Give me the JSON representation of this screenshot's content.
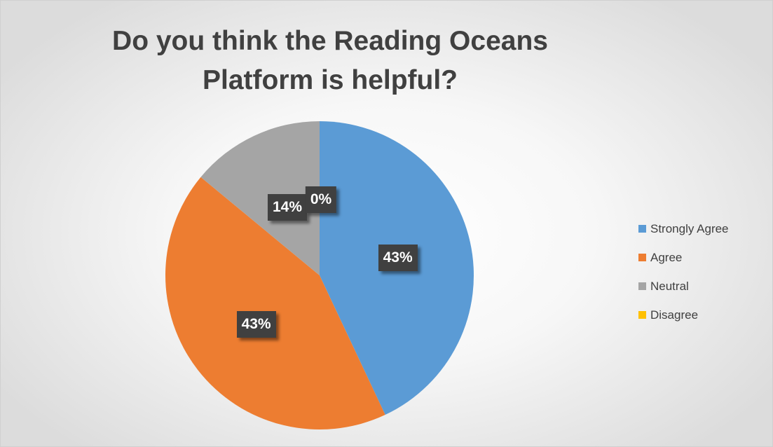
{
  "chart_data": {
    "type": "pie",
    "title": "Do you think the Reading Oceans Platform is helpful?",
    "categories": [
      "Strongly Agree",
      "Agree",
      "Neutral",
      "Disagree"
    ],
    "values": [
      43,
      43,
      14,
      0
    ],
    "data_labels": [
      "43%",
      "43%",
      "14%",
      "0%"
    ],
    "colors": [
      "#5B9BD5",
      "#ED7D31",
      "#A5A5A5",
      "#FFC000"
    ],
    "legend_position": "right"
  }
}
